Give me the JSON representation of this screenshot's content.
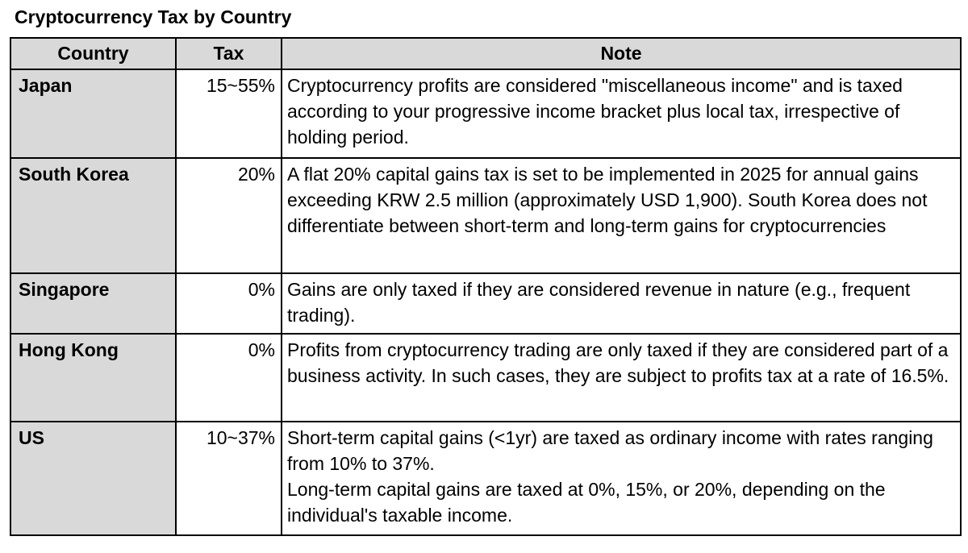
{
  "page_title": "Cryptocurrency Tax by Country",
  "table": {
    "headers": [
      "Country",
      "Tax",
      "Note"
    ],
    "rows": [
      {
        "country": "Japan",
        "tax": "15~55%",
        "note": "Cryptocurrency profits are considered \"miscellaneous income\" and is taxed according to your progressive income bracket plus local tax, irrespective of holding period."
      },
      {
        "country": "South Korea",
        "tax": "20%",
        "note": "A flat 20% capital gains tax is set to be implemented in 2025 for annual gains exceeding KRW 2.5 million (approximately USD 1,900). South Korea does not differentiate between short-term and long-term gains for cryptocurrencies"
      },
      {
        "country": "Singapore",
        "tax": "0%",
        "note": "Gains are only taxed if they are considered revenue in nature (e.g., frequent trading)."
      },
      {
        "country": "Hong Kong",
        "tax": "0%",
        "note": "Profits from cryptocurrency trading are only taxed if they are considered part of a business activity. In such cases, they are subject to profits tax at a rate of 16.5%."
      },
      {
        "country": "US",
        "tax": "10~37%",
        "note": "Short-term capital gains (<1yr) are taxed as ordinary income with rates ranging from 10% to 37%.\nLong-term capital gains are taxed at 0%, 15%, or 20%, depending on the individual's taxable income."
      }
    ],
    "colors": {
      "header_bg": "#d9d9d9",
      "country_col_bg": "#d9d9d9",
      "cell_bg": "#ffffff",
      "border": "#000000",
      "text": "#000000"
    }
  }
}
